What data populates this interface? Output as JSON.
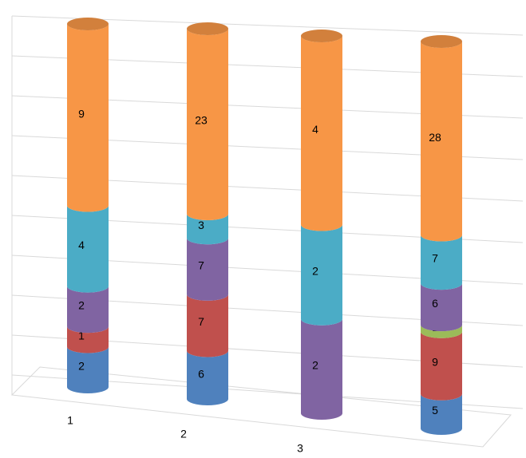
{
  "chart_data": {
    "type": "bar",
    "stack": "percent",
    "grid": true,
    "categories": [
      "1",
      "2",
      "3",
      null
    ],
    "series": [
      {
        "name": null,
        "color": "#4f81bd",
        "values": [
          2,
          6,
          null,
          5
        ]
      },
      {
        "name": null,
        "color": "#c0504d",
        "values": [
          1,
          7,
          null,
          9
        ]
      },
      {
        "name": null,
        "color": "#9bbb59",
        "values": [
          null,
          null,
          null,
          1
        ]
      },
      {
        "name": null,
        "color": "#8064a2",
        "values": [
          2,
          7,
          2,
          6
        ]
      },
      {
        "name": null,
        "color": "#4bacc6",
        "values": [
          4,
          3,
          2,
          7
        ]
      },
      {
        "name": null,
        "color": "#f79646",
        "values": [
          9,
          23,
          4,
          28
        ]
      }
    ]
  }
}
